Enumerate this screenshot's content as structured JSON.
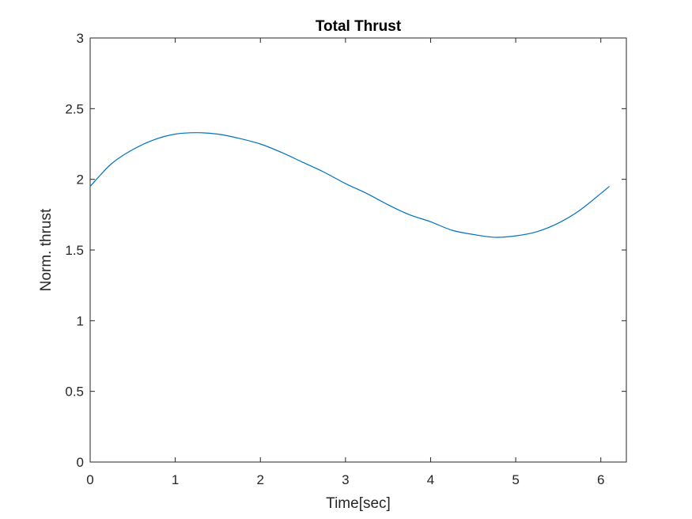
{
  "chart_data": {
    "type": "line",
    "title": "Total Thrust",
    "xlabel": "Time[sec]",
    "ylabel": "Norm. thrust",
    "xlim": [
      0,
      6.3
    ],
    "ylim": [
      0,
      3
    ],
    "xticks": [
      0,
      1,
      2,
      3,
      4,
      5,
      6
    ],
    "yticks": [
      0,
      0.5,
      1,
      1.5,
      2,
      2.5,
      3
    ],
    "xtick_labels": [
      "0",
      "1",
      "2",
      "3",
      "4",
      "5",
      "6"
    ],
    "ytick_labels": [
      "0",
      "0.5",
      "1",
      "1.5",
      "2",
      "2.5",
      "3"
    ],
    "grid": false,
    "series": [
      {
        "color": "#0072bd",
        "x": [
          0,
          0.25,
          0.5,
          0.75,
          1.0,
          1.25,
          1.5,
          1.75,
          2.0,
          2.25,
          2.5,
          2.75,
          3.0,
          3.25,
          3.5,
          3.75,
          4.0,
          4.25,
          4.5,
          4.75,
          5.0,
          5.25,
          5.5,
          5.75,
          6.0,
          6.1
        ],
        "y": [
          1.95,
          2.11,
          2.21,
          2.28,
          2.32,
          2.33,
          2.32,
          2.29,
          2.25,
          2.19,
          2.12,
          2.05,
          1.97,
          1.9,
          1.82,
          1.75,
          1.7,
          1.64,
          1.61,
          1.59,
          1.6,
          1.63,
          1.69,
          1.78,
          1.9,
          1.95
        ]
      }
    ]
  }
}
